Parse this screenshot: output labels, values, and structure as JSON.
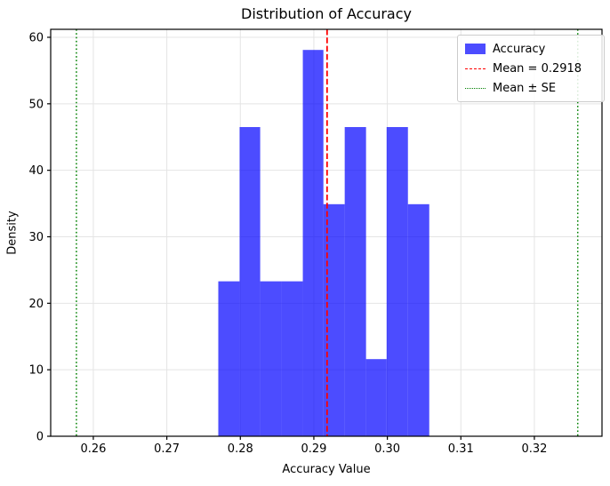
{
  "chart_data": {
    "type": "histogram",
    "title": "Distribution of Accuracy",
    "xlabel": "Accuracy Value",
    "ylabel": "Density",
    "bin_edges": [
      0.277,
      0.2799,
      0.2827,
      0.2856,
      0.2885,
      0.2913,
      0.2942,
      0.2971,
      0.2999,
      0.3028,
      0.3057
    ],
    "densities": [
      23.3,
      46.5,
      23.3,
      23.3,
      58.1,
      34.9,
      46.5,
      11.6,
      46.5,
      34.9
    ],
    "mean": 0.2918,
    "mean_minus_se": 0.2577,
    "mean_plus_se": 0.3259,
    "xlim": [
      0.2542,
      0.3292
    ],
    "ylim": [
      0,
      61.2
    ],
    "x_ticks": [
      0.26,
      0.27,
      0.28,
      0.29,
      0.3,
      0.31,
      0.32
    ],
    "x_tick_labels": [
      "0.26",
      "0.27",
      "0.28",
      "0.29",
      "0.30",
      "0.31",
      "0.32"
    ],
    "y_ticks": [
      0,
      10,
      20,
      30,
      40,
      50,
      60
    ],
    "y_tick_labels": [
      "0",
      "10",
      "20",
      "30",
      "40",
      "50",
      "60"
    ],
    "grid": true,
    "legend": {
      "position": "upper right",
      "items": [
        {
          "label": "Accuracy",
          "swatch": "patch",
          "color": "#0000ff",
          "alpha": 0.7
        },
        {
          "label": "Mean = 0.2918",
          "swatch": "dashed-line",
          "color": "#ff0000"
        },
        {
          "label": "Mean ± SE",
          "swatch": "dotted-line",
          "color": "#008000"
        }
      ]
    },
    "colors": {
      "bar": "#0000ff",
      "bar_alpha": 0.7,
      "mean_line": "#ff0000",
      "se_line": "#008000",
      "grid": "#e4e4e4",
      "spine": "#000000"
    }
  }
}
